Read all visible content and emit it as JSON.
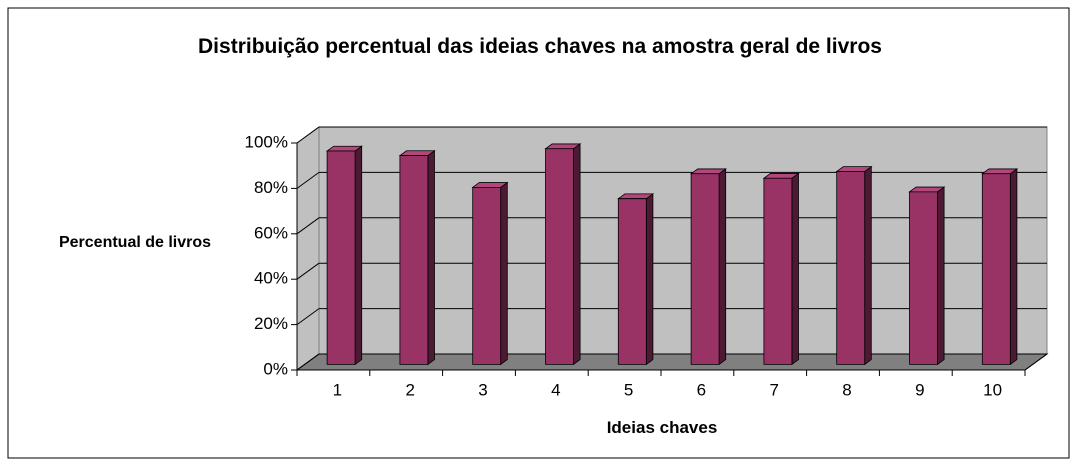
{
  "chart_data": {
    "type": "bar3d",
    "title": "Distribuição percentual das ideias chaves na amostra geral de livros",
    "x_label": "Ideias chaves",
    "y_label": "Percentual de livros",
    "categories": [
      "1",
      "2",
      "3",
      "4",
      "5",
      "6",
      "7",
      "8",
      "9",
      "10"
    ],
    "values": [
      94,
      92,
      78,
      95,
      73,
      84,
      82,
      85,
      76,
      84
    ],
    "color": "#993366",
    "ylim": [
      0,
      100
    ],
    "yticks": [
      {
        "value": 0,
        "label": "0%"
      },
      {
        "value": 20,
        "label": "20%"
      },
      {
        "value": 40,
        "label": "40%"
      },
      {
        "value": 60,
        "label": "60%"
      },
      {
        "value": 80,
        "label": "80%"
      },
      {
        "value": 100,
        "label": "100%"
      }
    ],
    "grid": true
  }
}
